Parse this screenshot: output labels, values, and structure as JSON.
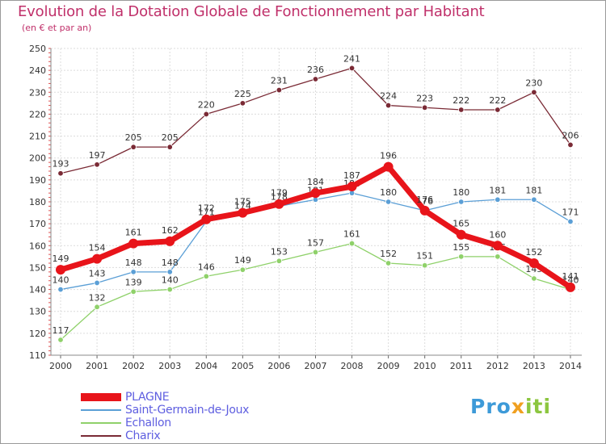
{
  "title": "Evolution de la Dotation Globale de Fonctionnement par Habitant",
  "subtitle": "(en € et par an)",
  "logo": {
    "p1": "Pro",
    "p2": "x",
    "p3": "iti"
  },
  "chart_data": {
    "type": "line",
    "x": [
      "2000",
      "2001",
      "2002",
      "2003",
      "2004",
      "2005",
      "2006",
      "2007",
      "2008",
      "2009",
      "2010",
      "2011",
      "2012",
      "2013",
      "2014"
    ],
    "ylim": [
      110,
      250
    ],
    "yticks": [
      110,
      120,
      130,
      140,
      150,
      160,
      170,
      180,
      190,
      200,
      210,
      220,
      230,
      240,
      250
    ],
    "grid": true,
    "legend_position": "bottom-left",
    "series": [
      {
        "name": "Charix",
        "color": "#7a2a35",
        "values": [
          193,
          197,
          205,
          205,
          220,
          225,
          231,
          236,
          241,
          224,
          223,
          222,
          222,
          230,
          206
        ]
      },
      {
        "name": "Echallon",
        "color": "#8fd16a",
        "values": [
          117,
          132,
          139,
          140,
          146,
          149,
          153,
          157,
          161,
          152,
          151,
          155,
          155,
          145,
          140
        ]
      },
      {
        "name": "Saint-Germain-de-Joux",
        "color": "#5b9fd6",
        "values": [
          140,
          143,
          148,
          148,
          171,
          174,
          178,
          181,
          184,
          180,
          176,
          180,
          181,
          181,
          171
        ]
      },
      {
        "name": "PLAGNE",
        "color": "#e8141a",
        "values": [
          149,
          154,
          161,
          162,
          172,
          175,
          179,
          184,
          187,
          196,
          176,
          165,
          160,
          152,
          141
        ]
      }
    ]
  }
}
